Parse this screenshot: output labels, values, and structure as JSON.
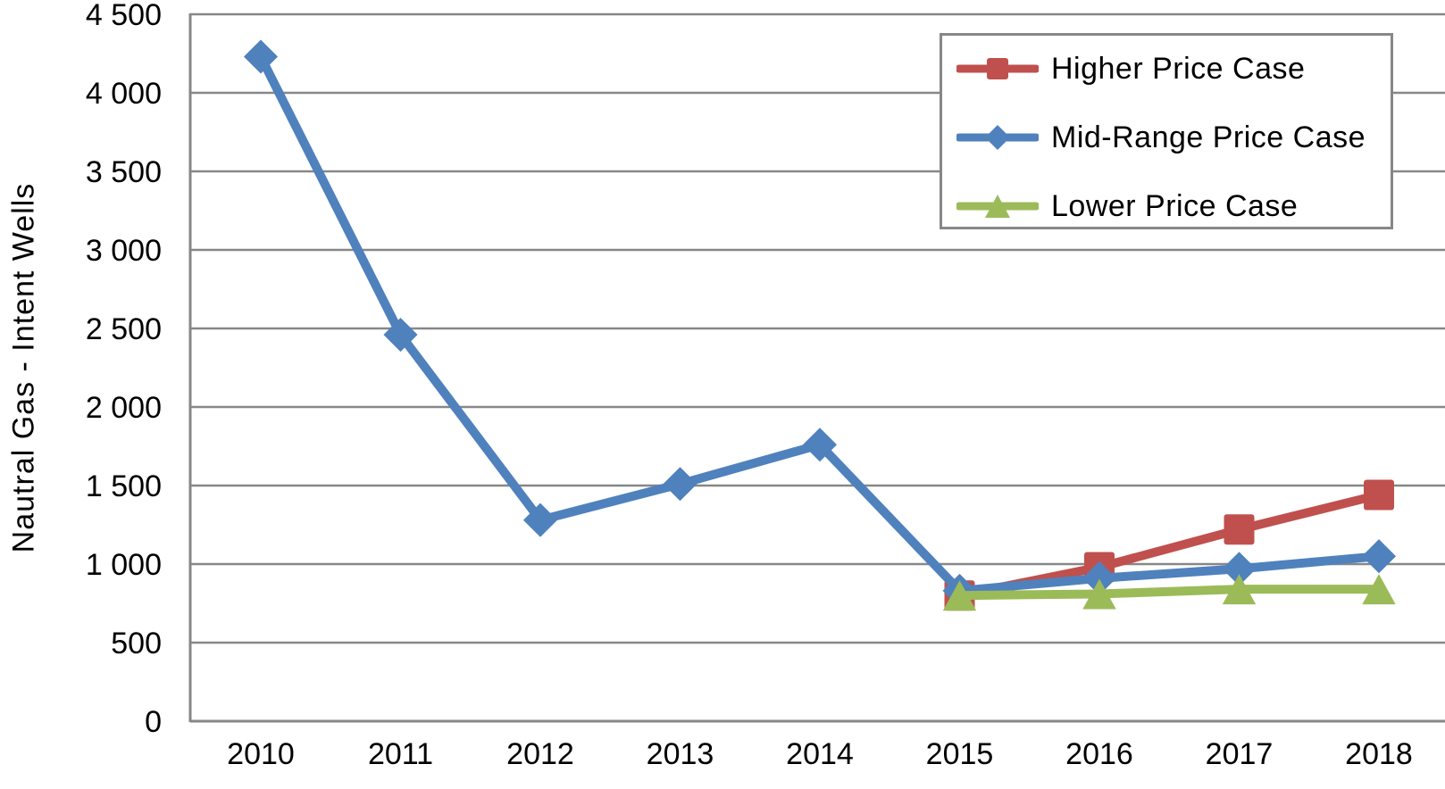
{
  "chart_data": {
    "type": "line",
    "ylabel": "Nautral Gas - Intent Wells",
    "categories": [
      "2010",
      "2011",
      "2012",
      "2013",
      "2014",
      "2015",
      "2016",
      "2017",
      "2018"
    ],
    "ylim": [
      0,
      4500
    ],
    "ytick_step": 500,
    "y_ticks": [
      "0",
      "500",
      "1 000",
      "1 500",
      "2 000",
      "2 500",
      "3 000",
      "3 500",
      "4 000",
      "4 500"
    ],
    "grid": "horizontal",
    "legend_position": "top-right",
    "axis_color": "#878787",
    "gridline_color": "#878787",
    "text_color": "#000000",
    "series": [
      {
        "name": "Higher Price Case",
        "color": "#C0504D",
        "marker": "square",
        "values": [
          null,
          null,
          null,
          null,
          null,
          800,
          980,
          1220,
          1440
        ]
      },
      {
        "name": "Mid-Range Price Case",
        "color": "#4F81BD",
        "marker": "diamond",
        "values": [
          4230,
          2460,
          1280,
          1510,
          1760,
          830,
          910,
          970,
          1050
        ]
      },
      {
        "name": "Lower Price Case",
        "color": "#9BBB59",
        "marker": "triangle",
        "values": [
          null,
          null,
          null,
          null,
          null,
          800,
          810,
          840,
          840
        ]
      }
    ]
  }
}
